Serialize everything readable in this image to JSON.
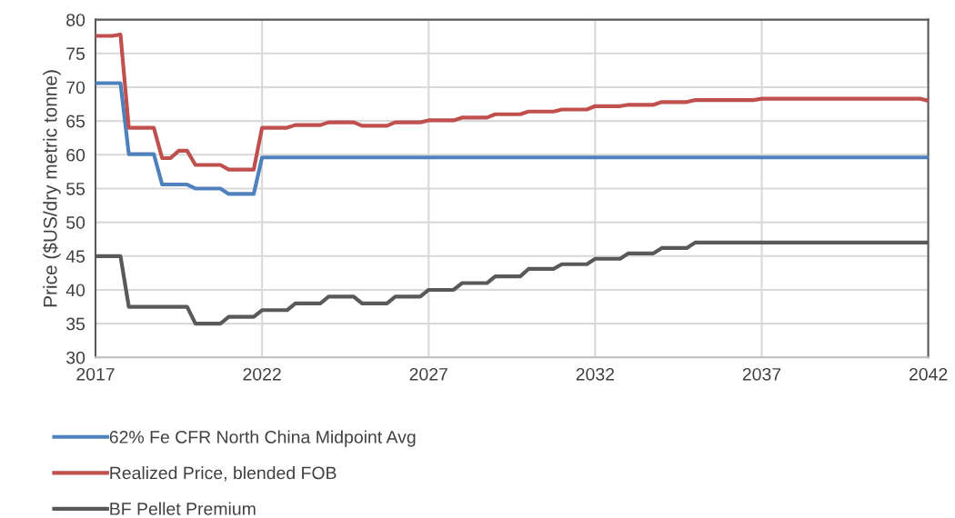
{
  "chart_data": {
    "type": "line",
    "ylabel": "Price ($US/dry metric tonne)",
    "xlim": [
      2017,
      2042
    ],
    "xticks": [
      2017,
      2022,
      2027,
      2032,
      2037,
      2042
    ],
    "ylim": [
      30,
      80
    ],
    "yticks": [
      30,
      35,
      40,
      45,
      50,
      55,
      60,
      65,
      70,
      75,
      80
    ],
    "grid": true,
    "legend": "bottom",
    "marker": "none",
    "line_style": "solid",
    "series": [
      {
        "name": "62% Fe CFR North China Midpoint Avg",
        "color": "#4f81bd",
        "x": [
          2017,
          2017.75,
          2018,
          2018.75,
          2019,
          2019.75,
          2020,
          2020.75,
          2021,
          2021.75,
          2022,
          2042
        ],
        "values": [
          70.6,
          70.6,
          60.1,
          60.1,
          55.6,
          55.6,
          55.0,
          55.0,
          54.2,
          54.2,
          59.6,
          59.6
        ]
      },
      {
        "name": "Realized Price, blended FOB",
        "color": "#c0504d",
        "x": [
          2017,
          2017.5,
          2017.75,
          2018,
          2018.75,
          2019,
          2019.25,
          2019.5,
          2019.75,
          2020,
          2020.75,
          2021,
          2021.75,
          2022,
          2022.75,
          2023,
          2023.75,
          2024,
          2024.75,
          2025,
          2025.75,
          2026,
          2026.75,
          2027,
          2027.75,
          2028,
          2028.75,
          2029,
          2029.75,
          2030,
          2030.75,
          2031,
          2031.75,
          2032,
          2032.75,
          2033,
          2033.75,
          2034,
          2034.75,
          2035,
          2036.75,
          2037,
          2041.75,
          2042
        ],
        "values": [
          77.6,
          77.6,
          77.8,
          64.0,
          64.0,
          59.5,
          59.5,
          60.6,
          60.6,
          58.5,
          58.5,
          57.8,
          57.8,
          64.0,
          64.0,
          64.4,
          64.4,
          64.8,
          64.8,
          64.3,
          64.3,
          64.8,
          64.8,
          65.1,
          65.1,
          65.5,
          65.5,
          66.0,
          66.0,
          66.4,
          66.4,
          66.7,
          66.7,
          67.2,
          67.2,
          67.4,
          67.4,
          67.8,
          67.8,
          68.1,
          68.1,
          68.3,
          68.3,
          68.0
        ]
      },
      {
        "name": "BF Pellet Premium",
        "color": "#595959",
        "x": [
          2017,
          2017.75,
          2018,
          2019.75,
          2020,
          2020.75,
          2021,
          2021.75,
          2022,
          2022.75,
          2023,
          2023.75,
          2024,
          2024.75,
          2025,
          2025.75,
          2026,
          2026.75,
          2027,
          2027.75,
          2028,
          2028.75,
          2029,
          2029.75,
          2030,
          2030.75,
          2031,
          2031.75,
          2032,
          2032.75,
          2033,
          2033.75,
          2034,
          2034.75,
          2035,
          2042
        ],
        "values": [
          45.0,
          45.0,
          37.5,
          37.5,
          35.0,
          35.0,
          36.0,
          36.0,
          37.0,
          37.0,
          38.0,
          38.0,
          39.0,
          39.0,
          38.0,
          38.0,
          39.0,
          39.0,
          40.0,
          40.0,
          41.0,
          41.0,
          42.0,
          42.0,
          43.1,
          43.1,
          43.8,
          43.8,
          44.6,
          44.6,
          45.4,
          45.4,
          46.2,
          46.2,
          47.0,
          47.0
        ]
      }
    ]
  }
}
